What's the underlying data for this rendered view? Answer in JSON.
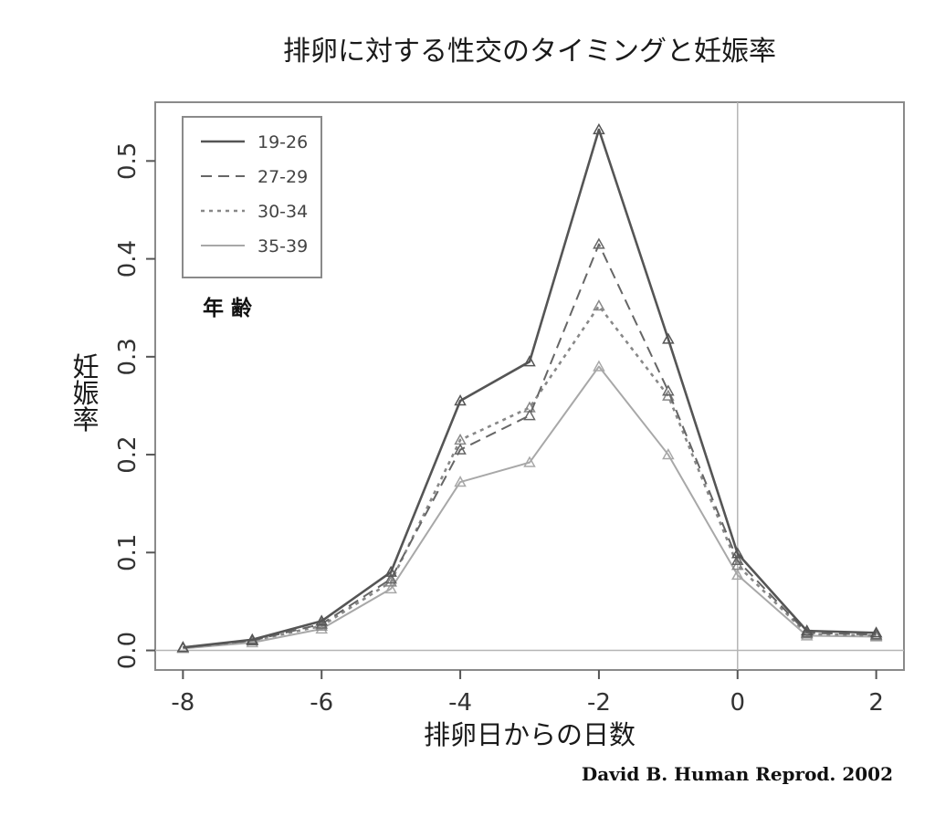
{
  "chart_data": {
    "type": "line",
    "title": "排卵に対する性交のタイミングと妊娠率",
    "xlabel": "排卵日からの日数",
    "ylabel": "妊娠率",
    "x": [
      -8,
      -7,
      -6,
      -5,
      -4,
      -3,
      -2,
      -1,
      0,
      1,
      2
    ],
    "xlim": [
      -8.4,
      2.4
    ],
    "ylim": [
      -0.02,
      0.56
    ],
    "xticks": [
      "-8",
      "-6",
      "-4",
      "-2",
      "0",
      "2"
    ],
    "yticks": [
      "0.0",
      "0.1",
      "0.2",
      "0.3",
      "0.4",
      "0.5"
    ],
    "legend_title": "年 齢",
    "legend_position": "top-left",
    "reference_lines": {
      "vertical_x": 0,
      "horizontal_y": 0
    },
    "series": [
      {
        "name": "19-26",
        "style": "solid",
        "color": "#555555",
        "values": [
          0.003,
          0.011,
          0.03,
          0.08,
          0.255,
          0.295,
          0.532,
          0.318,
          0.099,
          0.02,
          0.018
        ]
      },
      {
        "name": "27-29",
        "style": "dashed",
        "color": "#666666",
        "values": [
          0.003,
          0.01,
          0.027,
          0.073,
          0.205,
          0.24,
          0.415,
          0.265,
          0.092,
          0.018,
          0.016
        ]
      },
      {
        "name": "30-34",
        "style": "dotted",
        "color": "#888888",
        "values": [
          0.003,
          0.01,
          0.025,
          0.07,
          0.215,
          0.248,
          0.352,
          0.26,
          0.087,
          0.017,
          0.015
        ]
      },
      {
        "name": "35-39",
        "style": "solid",
        "color": "#a8a8a8",
        "values": [
          0.002,
          0.008,
          0.022,
          0.063,
          0.172,
          0.192,
          0.29,
          0.2,
          0.077,
          0.015,
          0.014
        ]
      }
    ]
  },
  "credit": "David B. Human Reprod. 2002"
}
